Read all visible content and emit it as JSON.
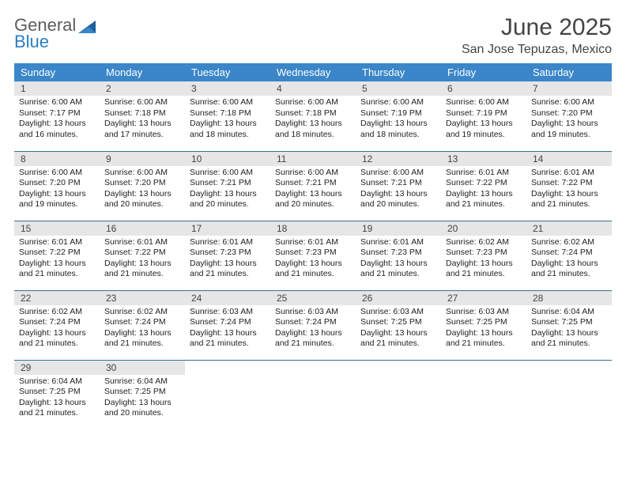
{
  "logo": {
    "line1": "General",
    "line2": "Blue"
  },
  "title": {
    "month": "June 2025",
    "location": "San Jose Tepuzas, Mexico"
  },
  "colors": {
    "header_bg": "#3a86c8",
    "header_fg": "#ffffff",
    "daynum_bg": "#e6e6e6",
    "rule": "#3a6fa0",
    "logo_gray": "#5c5c5c",
    "logo_blue": "#2d7ec0"
  },
  "weekdays": [
    "Sunday",
    "Monday",
    "Tuesday",
    "Wednesday",
    "Thursday",
    "Friday",
    "Saturday"
  ],
  "calendar": {
    "type": "table",
    "columns": 7,
    "rows": 5,
    "cell_font_size": 10.5,
    "header_font_size": 13
  },
  "days": [
    {
      "n": 1,
      "sr": "6:00 AM",
      "ss": "7:17 PM",
      "dl": "13 hours and 16 minutes."
    },
    {
      "n": 2,
      "sr": "6:00 AM",
      "ss": "7:18 PM",
      "dl": "13 hours and 17 minutes."
    },
    {
      "n": 3,
      "sr": "6:00 AM",
      "ss": "7:18 PM",
      "dl": "13 hours and 18 minutes."
    },
    {
      "n": 4,
      "sr": "6:00 AM",
      "ss": "7:18 PM",
      "dl": "13 hours and 18 minutes."
    },
    {
      "n": 5,
      "sr": "6:00 AM",
      "ss": "7:19 PM",
      "dl": "13 hours and 18 minutes."
    },
    {
      "n": 6,
      "sr": "6:00 AM",
      "ss": "7:19 PM",
      "dl": "13 hours and 19 minutes."
    },
    {
      "n": 7,
      "sr": "6:00 AM",
      "ss": "7:20 PM",
      "dl": "13 hours and 19 minutes."
    },
    {
      "n": 8,
      "sr": "6:00 AM",
      "ss": "7:20 PM",
      "dl": "13 hours and 19 minutes."
    },
    {
      "n": 9,
      "sr": "6:00 AM",
      "ss": "7:20 PM",
      "dl": "13 hours and 20 minutes."
    },
    {
      "n": 10,
      "sr": "6:00 AM",
      "ss": "7:21 PM",
      "dl": "13 hours and 20 minutes."
    },
    {
      "n": 11,
      "sr": "6:00 AM",
      "ss": "7:21 PM",
      "dl": "13 hours and 20 minutes."
    },
    {
      "n": 12,
      "sr": "6:00 AM",
      "ss": "7:21 PM",
      "dl": "13 hours and 20 minutes."
    },
    {
      "n": 13,
      "sr": "6:01 AM",
      "ss": "7:22 PM",
      "dl": "13 hours and 21 minutes."
    },
    {
      "n": 14,
      "sr": "6:01 AM",
      "ss": "7:22 PM",
      "dl": "13 hours and 21 minutes."
    },
    {
      "n": 15,
      "sr": "6:01 AM",
      "ss": "7:22 PM",
      "dl": "13 hours and 21 minutes."
    },
    {
      "n": 16,
      "sr": "6:01 AM",
      "ss": "7:22 PM",
      "dl": "13 hours and 21 minutes."
    },
    {
      "n": 17,
      "sr": "6:01 AM",
      "ss": "7:23 PM",
      "dl": "13 hours and 21 minutes."
    },
    {
      "n": 18,
      "sr": "6:01 AM",
      "ss": "7:23 PM",
      "dl": "13 hours and 21 minutes."
    },
    {
      "n": 19,
      "sr": "6:01 AM",
      "ss": "7:23 PM",
      "dl": "13 hours and 21 minutes."
    },
    {
      "n": 20,
      "sr": "6:02 AM",
      "ss": "7:23 PM",
      "dl": "13 hours and 21 minutes."
    },
    {
      "n": 21,
      "sr": "6:02 AM",
      "ss": "7:24 PM",
      "dl": "13 hours and 21 minutes."
    },
    {
      "n": 22,
      "sr": "6:02 AM",
      "ss": "7:24 PM",
      "dl": "13 hours and 21 minutes."
    },
    {
      "n": 23,
      "sr": "6:02 AM",
      "ss": "7:24 PM",
      "dl": "13 hours and 21 minutes."
    },
    {
      "n": 24,
      "sr": "6:03 AM",
      "ss": "7:24 PM",
      "dl": "13 hours and 21 minutes."
    },
    {
      "n": 25,
      "sr": "6:03 AM",
      "ss": "7:24 PM",
      "dl": "13 hours and 21 minutes."
    },
    {
      "n": 26,
      "sr": "6:03 AM",
      "ss": "7:25 PM",
      "dl": "13 hours and 21 minutes."
    },
    {
      "n": 27,
      "sr": "6:03 AM",
      "ss": "7:25 PM",
      "dl": "13 hours and 21 minutes."
    },
    {
      "n": 28,
      "sr": "6:04 AM",
      "ss": "7:25 PM",
      "dl": "13 hours and 21 minutes."
    },
    {
      "n": 29,
      "sr": "6:04 AM",
      "ss": "7:25 PM",
      "dl": "13 hours and 21 minutes."
    },
    {
      "n": 30,
      "sr": "6:04 AM",
      "ss": "7:25 PM",
      "dl": "13 hours and 20 minutes."
    }
  ],
  "labels": {
    "sunrise": "Sunrise:",
    "sunset": "Sunset:",
    "daylight": "Daylight:"
  }
}
